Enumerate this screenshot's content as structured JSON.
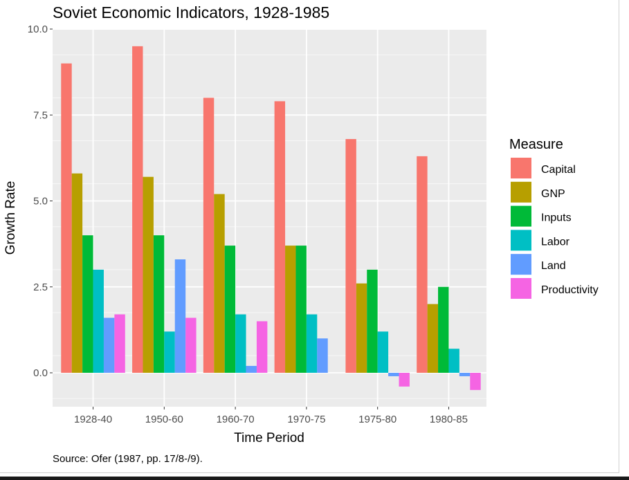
{
  "chart_data": {
    "type": "bar",
    "title": "Soviet Economic Indicators, 1928-1985",
    "xlabel": "Time Period",
    "ylabel": "Growth Rate",
    "caption": "Source: Ofer (1987, pp. 17/8-/9).",
    "categories": [
      "1928-40",
      "1950-60",
      "1960-70",
      "1970-75",
      "1975-80",
      "1980-85"
    ],
    "y_ticks": [
      "0.0",
      "2.5",
      "5.0",
      "7.5",
      "10.0"
    ],
    "ylim": [
      -1.0,
      10.0
    ],
    "grid": true,
    "legend": {
      "title": "Measure",
      "position": "right"
    },
    "series": [
      {
        "name": "Capital",
        "color": "#F8766D",
        "values": [
          9.0,
          9.5,
          8.0,
          7.9,
          6.8,
          6.3
        ]
      },
      {
        "name": "GNP",
        "color": "#B79F00",
        "values": [
          5.8,
          5.7,
          5.2,
          3.7,
          2.6,
          2.0
        ]
      },
      {
        "name": "Inputs",
        "color": "#00BA38",
        "values": [
          4.0,
          4.0,
          3.7,
          3.7,
          3.0,
          2.5
        ]
      },
      {
        "name": "Labor",
        "color": "#00BFC4",
        "values": [
          3.0,
          1.2,
          1.7,
          1.7,
          1.2,
          0.7
        ]
      },
      {
        "name": "Land",
        "color": "#619CFF",
        "values": [
          1.6,
          3.3,
          0.2,
          1.0,
          -0.1,
          -0.1
        ]
      },
      {
        "name": "Productivity",
        "color": "#F564E3",
        "values": [
          1.7,
          1.6,
          1.5,
          0.0,
          -0.4,
          -0.5
        ]
      }
    ]
  }
}
